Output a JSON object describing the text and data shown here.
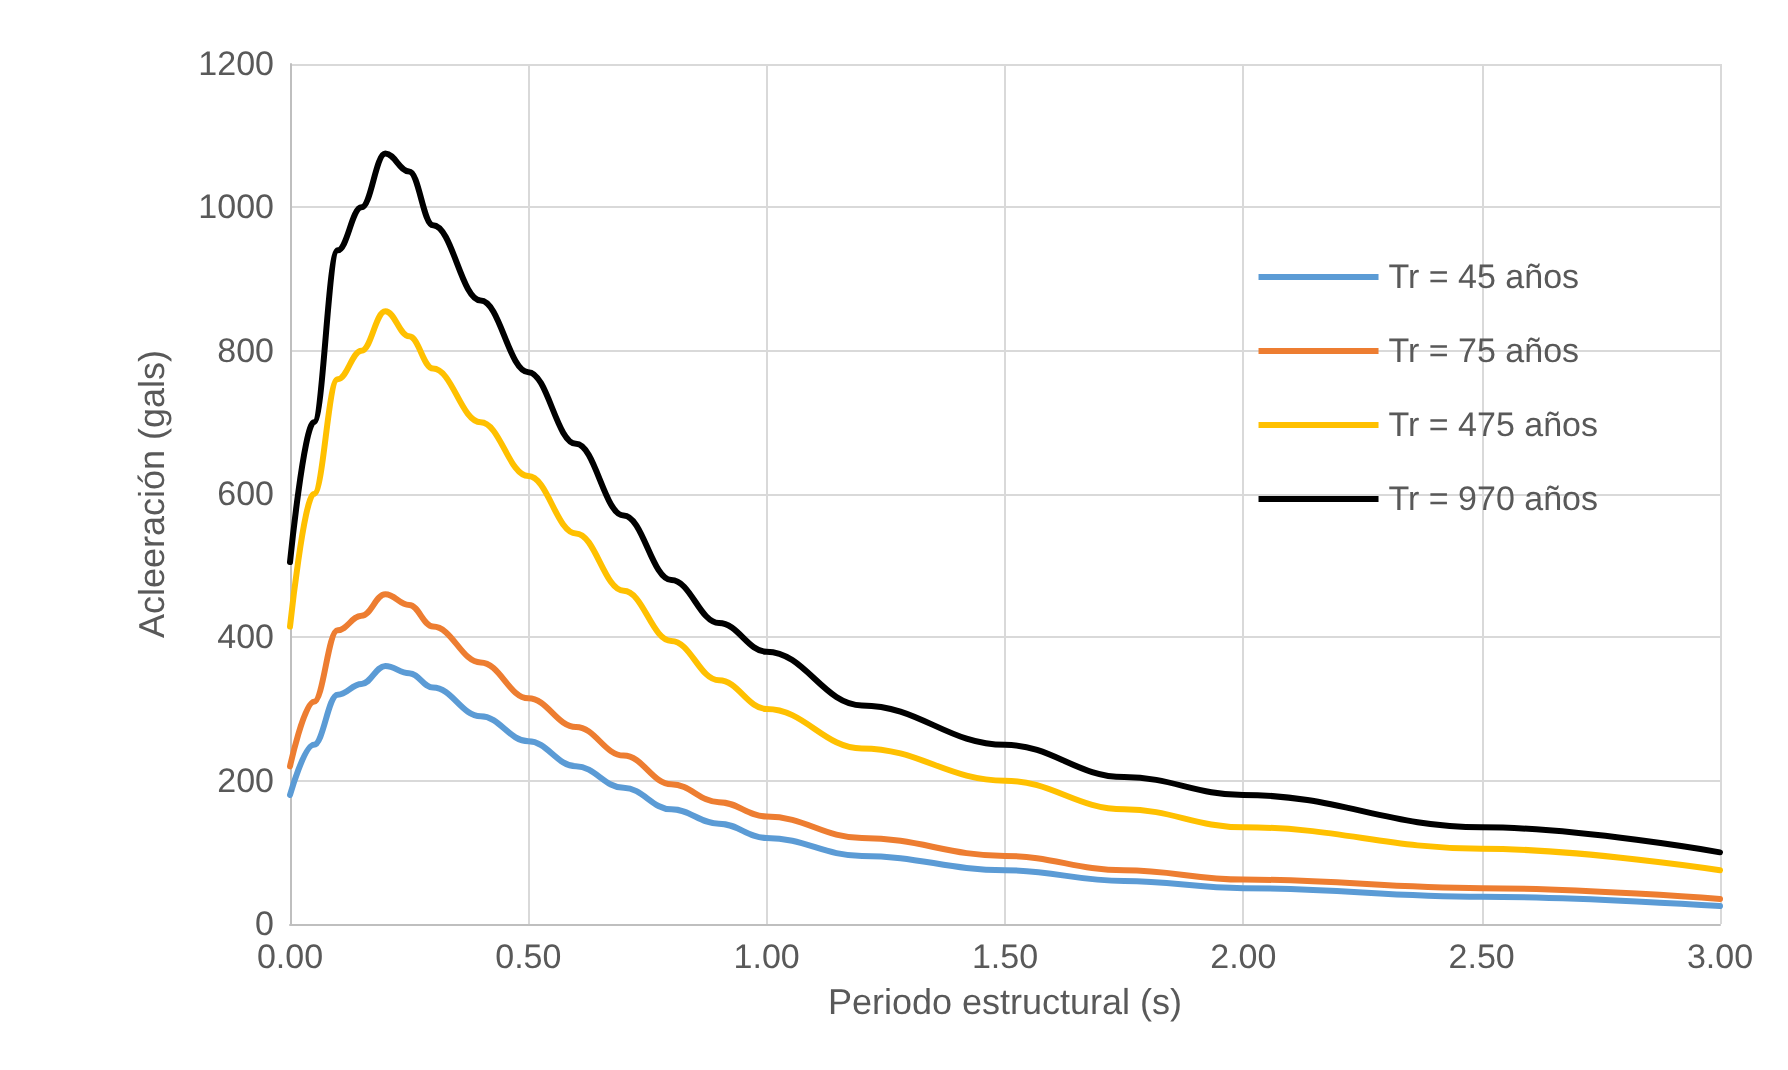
{
  "chart_data": {
    "type": "line",
    "xlabel": "Periodo estructural (s)",
    "ylabel": "Acleeración (gals)",
    "x": [
      0,
      0.05,
      0.1,
      0.15,
      0.2,
      0.25,
      0.3,
      0.4,
      0.5,
      0.6,
      0.7,
      0.8,
      0.9,
      1.0,
      1.2,
      1.5,
      1.75,
      2.0,
      2.5,
      3.0
    ],
    "series": [
      {
        "name": "Tr = 45 años",
        "color": "#5b9bd5",
        "values": [
          180,
          250,
          320,
          335,
          360,
          350,
          330,
          290,
          255,
          220,
          190,
          160,
          140,
          120,
          95,
          75,
          60,
          50,
          38,
          25
        ]
      },
      {
        "name": "Tr = 75 años",
        "color": "#ed7d31",
        "values": [
          220,
          310,
          410,
          430,
          460,
          445,
          415,
          365,
          315,
          275,
          235,
          195,
          170,
          150,
          120,
          95,
          75,
          62,
          50,
          35
        ]
      },
      {
        "name": "Tr = 475 años",
        "color": "#ffc000",
        "values": [
          415,
          600,
          760,
          800,
          855,
          820,
          775,
          700,
          625,
          545,
          465,
          395,
          340,
          300,
          245,
          200,
          160,
          135,
          105,
          75
        ]
      },
      {
        "name": "Tr = 970 años",
        "color": "#000000",
        "values": [
          505,
          700,
          940,
          1000,
          1075,
          1050,
          975,
          870,
          770,
          670,
          570,
          480,
          420,
          380,
          305,
          250,
          205,
          180,
          135,
          100
        ]
      }
    ],
    "xlim": [
      0,
      3
    ],
    "xticks": [
      {
        "value": 0,
        "label": "0.00"
      },
      {
        "value": 0.5,
        "label": "0.50"
      },
      {
        "value": 1,
        "label": "1.00"
      },
      {
        "value": 1.5,
        "label": "1.50"
      },
      {
        "value": 2,
        "label": "2.00"
      },
      {
        "value": 2.5,
        "label": "2.50"
      },
      {
        "value": 3,
        "label": "3.00"
      }
    ],
    "ylim": [
      0,
      1200
    ],
    "yticks": [
      0,
      200,
      400,
      600,
      800,
      1000,
      1200
    ],
    "grid": true,
    "legend": "right",
    "marker": "none",
    "line_style": "solid"
  }
}
